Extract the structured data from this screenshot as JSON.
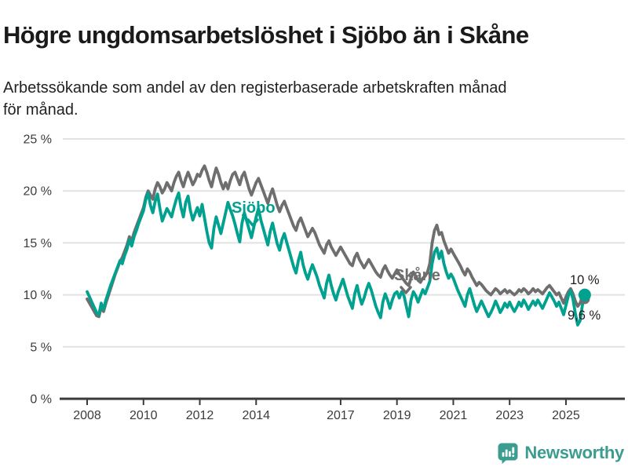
{
  "header": {
    "title": "Högre ungdomsarbetslöshet i Sjöbo än i Skåne",
    "subtitle": "Arbetssökande som andel av den registerbaserade arbetskraften månad\nför månad."
  },
  "chart_data": {
    "type": "line",
    "title": "Högre ungdomsarbetslöshet i Sjöbo än i Skåne",
    "subtitle": "Arbetssökande som andel av den registerbaserade arbetskraften månad för månad.",
    "unit": "%",
    "frequency": "monthly",
    "x_start_year": 2008,
    "points_per_year": 12,
    "ylim": [
      0,
      25
    ],
    "grid": "horizontal",
    "grid_color": "#e2e2e2",
    "axis_color": "#3a3a3a",
    "tick_label_color": "#3c3c3c",
    "y_ticks": [
      0,
      5,
      10,
      15,
      20,
      25
    ],
    "y_tick_labels": [
      "0 %",
      "5 %",
      "10 %",
      "15 %",
      "20 %",
      "25 %"
    ],
    "x_tick_years": [
      2008,
      2010,
      2012,
      2014,
      2017,
      2019,
      2021,
      2023,
      2025
    ],
    "x_tick_labels": [
      "2008",
      "2010",
      "2012",
      "2014",
      "2017",
      "2019",
      "2021",
      "2023",
      "2025"
    ],
    "legend_position": "inline-labels",
    "series": [
      {
        "name": "Skåne",
        "color": "#6e6e6e",
        "end_label": "9,6 %",
        "end_value": 9.6,
        "values": [
          9.6,
          9.2,
          8.8,
          8.4,
          8.0,
          7.9,
          8.8,
          8.4,
          9.2,
          9.9,
          10.6,
          11.3,
          12.0,
          12.6,
          13.2,
          13.6,
          14.2,
          14.8,
          15.6,
          15.2,
          16.0,
          16.6,
          17.2,
          17.8,
          18.4,
          19.4,
          20.0,
          19.6,
          19.2,
          20.2,
          20.8,
          20.4,
          19.8,
          20.2,
          20.8,
          20.4,
          20.0,
          20.8,
          21.4,
          21.8,
          21.0,
          20.4,
          21.2,
          21.8,
          21.2,
          20.6,
          21.0,
          21.6,
          21.4,
          22.0,
          22.4,
          21.8,
          21.0,
          20.4,
          21.4,
          22.2,
          21.6,
          20.8,
          20.2,
          20.8,
          20.2,
          21.0,
          21.6,
          21.8,
          21.2,
          20.6,
          21.4,
          21.8,
          21.0,
          20.2,
          19.6,
          20.2,
          20.8,
          21.2,
          20.6,
          20.0,
          19.4,
          18.8,
          19.6,
          20.2,
          19.4,
          18.6,
          18.0,
          18.6,
          19.0,
          18.4,
          17.8,
          17.2,
          16.6,
          16.2,
          17.0,
          17.4,
          16.8,
          16.2,
          15.6,
          16.0,
          16.4,
          16.0,
          15.4,
          14.8,
          14.4,
          14.0,
          14.8,
          15.2,
          14.6,
          14.2,
          13.8,
          14.2,
          14.6,
          14.2,
          13.8,
          13.4,
          13.0,
          12.8,
          13.6,
          14.0,
          13.4,
          13.0,
          12.6,
          13.0,
          13.4,
          13.0,
          12.6,
          12.2,
          11.9,
          11.7,
          12.4,
          12.8,
          12.3,
          11.9,
          11.6,
          12.0,
          12.4,
          12.0,
          11.7,
          11.4,
          11.1,
          10.9,
          11.6,
          12.2,
          11.8,
          11.4,
          11.2,
          11.6,
          11.8,
          12.2,
          13.0,
          15.0,
          16.2,
          16.7,
          15.8,
          16.0,
          15.2,
          14.6,
          14.0,
          14.4,
          14.0,
          13.6,
          13.2,
          12.8,
          12.3,
          11.9,
          12.5,
          12.2,
          11.7,
          11.3,
          10.9,
          11.2,
          11.0,
          10.7,
          10.4,
          10.2,
          10.0,
          10.3,
          10.6,
          10.4,
          10.1,
          10.3,
          10.5,
          10.2,
          10.4,
          10.2,
          10.0,
          10.2,
          10.5,
          10.3,
          10.6,
          10.4,
          10.1,
          10.3,
          10.6,
          10.3,
          10.5,
          10.3,
          10.1,
          10.4,
          10.7,
          10.9,
          10.6,
          10.3,
          10.0,
          10.2,
          9.7,
          9.2,
          9.8,
          10.3,
          10.6,
          10.1,
          9.4,
          8.9,
          9.2,
          9.8,
          9.6
        ]
      },
      {
        "name": "Sjöbo",
        "color": "#00a18f",
        "end_label": "10 %",
        "end_value": 10.0,
        "values": [
          10.3,
          9.8,
          9.3,
          8.8,
          8.3,
          8.1,
          9.2,
          8.6,
          9.5,
          10.2,
          10.9,
          11.5,
          12.1,
          12.7,
          13.3,
          13.0,
          13.8,
          14.4,
          15.3,
          14.7,
          15.6,
          16.2,
          16.9,
          17.5,
          18.1,
          19.2,
          19.8,
          18.6,
          17.9,
          19.0,
          19.7,
          18.3,
          17.1,
          17.7,
          18.3,
          17.9,
          17.5,
          18.4,
          19.2,
          19.8,
          18.4,
          17.5,
          18.9,
          19.5,
          18.1,
          17.2,
          17.8,
          18.4,
          17.6,
          18.7,
          17.4,
          16.1,
          15.0,
          14.5,
          16.4,
          17.5,
          16.7,
          15.9,
          16.9,
          17.9,
          18.9,
          18.2,
          17.6,
          16.8,
          15.9,
          15.1,
          16.9,
          17.9,
          17.1,
          16.3,
          15.5,
          16.5,
          17.5,
          18.3,
          17.2,
          16.4,
          15.6,
          14.8,
          16.1,
          16.9,
          15.9,
          14.9,
          14.3,
          15.3,
          15.9,
          15.1,
          14.3,
          13.5,
          12.7,
          12.1,
          13.3,
          14.1,
          12.9,
          12.1,
          11.5,
          12.3,
          12.9,
          12.3,
          11.7,
          10.9,
          10.3,
          9.7,
          11.1,
          11.9,
          10.9,
          10.1,
          9.5,
          10.3,
          10.9,
          11.5,
          10.7,
          9.9,
          9.3,
          8.7,
          10.1,
          10.9,
          9.9,
          9.1,
          9.7,
          10.5,
          11.1,
          10.5,
          9.7,
          8.9,
          8.3,
          7.8,
          9.3,
          10.1,
          9.5,
          8.7,
          9.5,
          10.1,
          10.3,
          9.7,
          10.3,
          9.9,
          8.9,
          7.9,
          9.5,
          10.3,
          9.9,
          9.3,
          9.9,
          10.5,
          10.1,
          10.7,
          11.3,
          13.0,
          14.1,
          14.5,
          13.5,
          14.2,
          13.0,
          12.2,
          11.6,
          12.0,
          11.6,
          11.0,
          10.4,
          9.9,
          9.4,
          8.9,
          10.0,
          10.6,
          9.8,
          9.0,
          8.4,
          8.9,
          9.4,
          8.9,
          8.4,
          7.9,
          8.3,
          8.8,
          9.4,
          8.9,
          8.3,
          8.7,
          9.2,
          8.8,
          9.3,
          8.8,
          8.4,
          8.8,
          9.3,
          8.9,
          9.5,
          9.1,
          8.6,
          9.0,
          9.4,
          9.0,
          9.5,
          9.1,
          8.7,
          9.2,
          9.7,
          10.2,
          9.8,
          9.4,
          8.9,
          9.3,
          8.7,
          8.1,
          9.0,
          9.9,
          10.4,
          9.6,
          8.2,
          7.1,
          7.5,
          9.0,
          10.0
        ]
      }
    ]
  },
  "footer": {
    "brand": "Newsworthy",
    "logo_color": "#3b9c90"
  }
}
